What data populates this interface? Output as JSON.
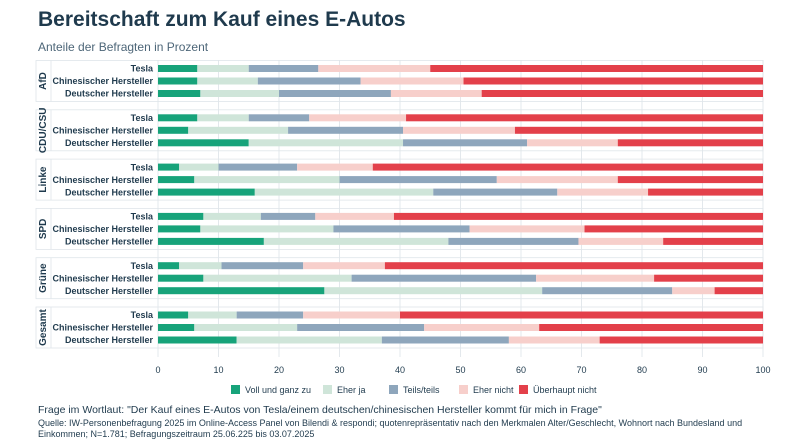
{
  "title": "Bereitschaft zum Kauf eines E-Autos",
  "subtitle": "Anteile der Befragten in Prozent",
  "question": "Frage im Wortlaut: \"Der Kauf eines E-Autos von Tesla/einem deutschen/chinesischen Hersteller kommt für mich in Frage\"",
  "source": "Quelle: IW-Personenbefragung 2025 im Online-Access Panel von Bilendi & respondi; quotenrepräsentativ nach den Merkmalen Alter/Geschlecht, Wohnort nach Bundesland und Einkommen; N=1.781; Befragungszeitraum 25.06.225 bis 03.07.2025",
  "chart_data": {
    "type": "bar",
    "orientation": "horizontal",
    "stacked": true,
    "title": "Bereitschaft zum Kauf eines E-Autos",
    "subtitle": "Anteile der Befragten in Prozent",
    "xlim": [
      0,
      100
    ],
    "xticks": [
      0,
      10,
      20,
      30,
      40,
      50,
      60,
      70,
      80,
      90,
      100
    ],
    "legend_position": "bottom",
    "series_names": [
      "Voll und ganz zu",
      "Eher ja",
      "Teils/teils",
      "Eher nicht",
      "Überhaupt nicht"
    ],
    "colors": [
      "#17a37a",
      "#cfe5d9",
      "#8ea6bc",
      "#f7cfcb",
      "#e3404a"
    ],
    "groups": [
      {
        "name": "AfD",
        "rows": [
          {
            "label": "Tesla",
            "values": [
              6.5,
              8.5,
              11.5,
              18.5,
              55
            ]
          },
          {
            "label": "Chinesischer Hersteller",
            "values": [
              6.5,
              10,
              17,
              17,
              49.5
            ]
          },
          {
            "label": "Deutscher Hersteller",
            "values": [
              7,
              13,
              18.5,
              15,
              46.5
            ]
          }
        ]
      },
      {
        "name": "CDU/CSU",
        "rows": [
          {
            "label": "Tesla",
            "values": [
              6.5,
              8.5,
              10,
              16,
              59
            ]
          },
          {
            "label": "Chinesischer Hersteller",
            "values": [
              5,
              16.5,
              19,
              18.5,
              41
            ]
          },
          {
            "label": "Deutscher Hersteller",
            "values": [
              15,
              25.5,
              20.5,
              15,
              24
            ]
          }
        ]
      },
      {
        "name": "Linke",
        "rows": [
          {
            "label": "Tesla",
            "values": [
              3.5,
              6.5,
              13,
              12.5,
              64.5
            ]
          },
          {
            "label": "Chinesischer Hersteller",
            "values": [
              6,
              24,
              26,
              20,
              24
            ]
          },
          {
            "label": "Deutscher Hersteller",
            "values": [
              16,
              29.5,
              20.5,
              15,
              19
            ]
          }
        ]
      },
      {
        "name": "SPD",
        "rows": [
          {
            "label": "Tesla",
            "values": [
              7.5,
              9.5,
              9,
              13,
              61
            ]
          },
          {
            "label": "Chinesischer Hersteller",
            "values": [
              7,
              22,
              22.5,
              19,
              29.5
            ]
          },
          {
            "label": "Deutscher Hersteller",
            "values": [
              17.5,
              30.5,
              21.5,
              14,
              16.5
            ]
          }
        ]
      },
      {
        "name": "Grüne",
        "rows": [
          {
            "label": "Tesla",
            "values": [
              3.5,
              7,
              13.5,
              13.5,
              62.5
            ]
          },
          {
            "label": "Chinesischer Hersteller",
            "values": [
              7.5,
              24.5,
              30.5,
              19.5,
              18
            ]
          },
          {
            "label": "Deutscher Hersteller",
            "values": [
              27.5,
              36,
              21.5,
              7,
              8
            ]
          }
        ]
      },
      {
        "name": "Gesamt",
        "rows": [
          {
            "label": "Tesla",
            "values": [
              5,
              8,
              11,
              16,
              60
            ]
          },
          {
            "label": "Chinesischer Hersteller",
            "values": [
              6,
              17,
              21,
              19,
              37
            ]
          },
          {
            "label": "Deutscher Hersteller",
            "values": [
              13,
              24,
              21,
              15,
              27
            ]
          }
        ]
      }
    ]
  }
}
